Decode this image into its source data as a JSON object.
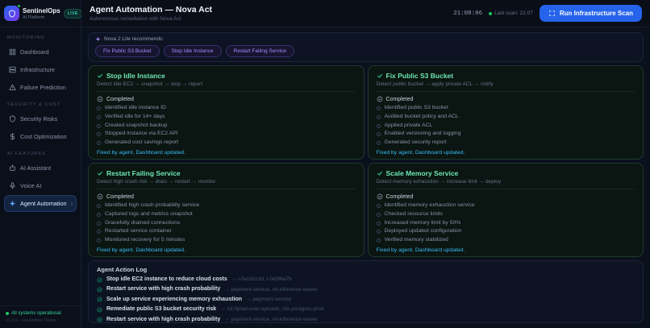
{
  "colors": {
    "accent_blue": "#2563eb",
    "success_green": "#34d399",
    "card_title_green": "#6ee7b7",
    "teal": "#2dd4bf",
    "purple": "#a78bfa",
    "cyan_link": "#38bdf8"
  },
  "icons": {
    "brand": "shield",
    "recommend": "sparkle",
    "scan": "scan",
    "title_check": "check",
    "status": "check-circle",
    "log": "check-circle"
  },
  "sidebar": {
    "brand": {
      "name": "SentinelOps",
      "tagline": "AI Platform",
      "badge": "LIVE"
    },
    "sections": [
      {
        "label": "MONITORING",
        "items": [
          {
            "label": "Dashboard",
            "icon": "grid",
            "state": ""
          },
          {
            "label": "Infrastructure",
            "icon": "server",
            "state": ""
          },
          {
            "label": "Failure Prediction",
            "icon": "alert",
            "state": ""
          }
        ]
      },
      {
        "label": "SECURITY & COST",
        "items": [
          {
            "label": "Security Risks",
            "icon": "shield",
            "state": ""
          },
          {
            "label": "Cost Optimization",
            "icon": "dollar",
            "state": ""
          }
        ]
      },
      {
        "label": "AI FEATURES",
        "items": [
          {
            "label": "AI Assistant",
            "icon": "bot",
            "state": ""
          },
          {
            "label": "Voice AI",
            "icon": "mic",
            "state": ""
          },
          {
            "label": "Agent Automation",
            "icon": "sparkle",
            "state": "active"
          }
        ]
      }
    ],
    "footer": {
      "status": "All systems operational",
      "version": "v1.0.0 · Hackathon Demo"
    }
  },
  "header": {
    "title": "Agent Automation — Nova Act",
    "subtitle": "Autonomous remediation with Nova Act",
    "clock": "21:08:06",
    "last_scan": "Last scan: 21:07",
    "scan_button": "Run Infrastructure Scan"
  },
  "recommendations": {
    "label": "Nova 2 Lite recommends:",
    "pills": [
      "Fix Public S3 Bucket",
      "Stop Idle Instance",
      "Restart Failing Service"
    ]
  },
  "cards": [
    {
      "title": "Stop Idle Instance",
      "subtitle": "Detect idle EC2 → snapshot → stop → report",
      "status": "Completed",
      "steps": [
        "Identified idle instance ID",
        "Verified idle for 14+ days",
        "Created snapshot backup",
        "Stopped instance via EC2 API",
        "Generated cost savings report"
      ],
      "footer": "Fixed by agent. Dashboard updated."
    },
    {
      "title": "Fix Public S3 Bucket",
      "subtitle": "Detect public bucket → apply private ACL → notify",
      "status": "Completed",
      "steps": [
        "Identified public S3 bucket",
        "Audited bucket policy and ACL",
        "Applied private ACL",
        "Enabled versioning and logging",
        "Generated security report"
      ],
      "footer": "Fixed by agent. Dashboard updated."
    },
    {
      "title": "Restart Failing Service",
      "subtitle": "Detect high crash risk → drain → restart → monitor",
      "status": "Completed",
      "steps": [
        "Identified high crash probability service",
        "Captured logs and metrics snapshot",
        "Gracefully drained connections",
        "Restarted service container",
        "Monitored recovery for 5 minutes"
      ],
      "footer": "Fixed by agent. Dashboard updated."
    },
    {
      "title": "Scale Memory Service",
      "subtitle": "Detect memory exhaustion → increase limit → deploy",
      "status": "Completed",
      "steps": [
        "Identified memory exhaustion service",
        "Checked resource limits",
        "Increased memory limit by 50%",
        "Deployed updated configuration",
        "Verified memory stabilized"
      ],
      "footer": "Fixed by agent. Dashboard updated."
    }
  ],
  "action_log": {
    "title": "Agent Action Log",
    "entries": [
      {
        "action": "Stop idle EC2 instance to reduce cloud costs",
        "targets": "→ i-0a1b2c3d, i-0e5f6a7b"
      },
      {
        "action": "Restart service with high crash probability",
        "targets": "→ payment-service, ml-inference-server"
      },
      {
        "action": "Scale up service experiencing memory exhaustion",
        "targets": "→ payment-service"
      },
      {
        "action": "Remediate public S3 bucket security risk",
        "targets": "→ s3://prod-user-uploads, rds-postgres-prod"
      },
      {
        "action": "Restart service with high crash probability",
        "targets": "→ payment-service, ml-inference-server"
      }
    ]
  }
}
